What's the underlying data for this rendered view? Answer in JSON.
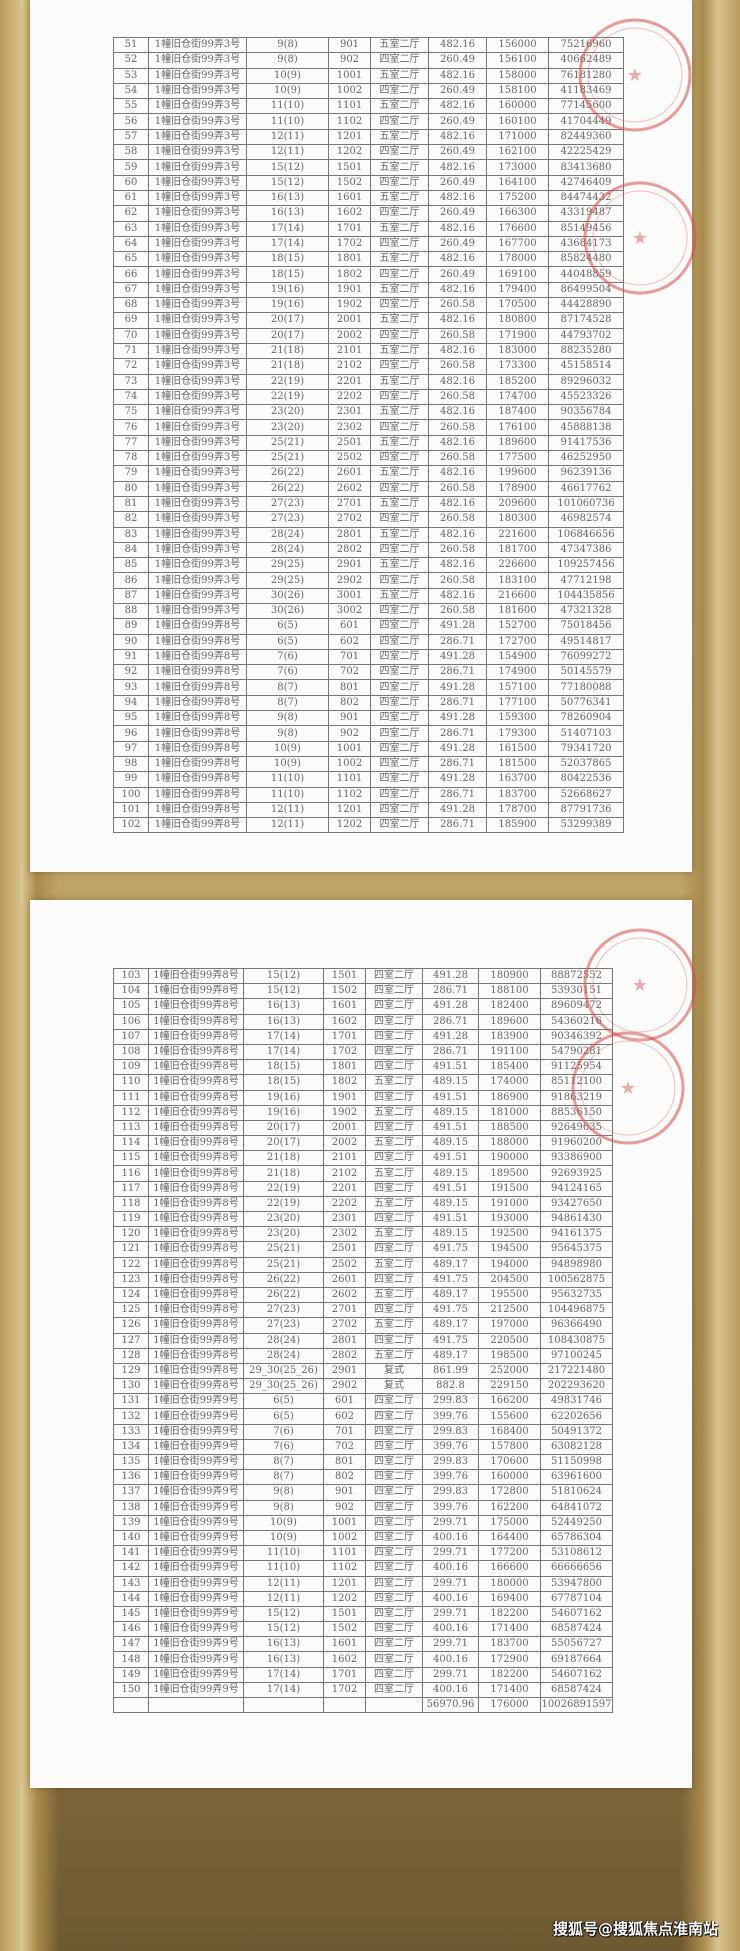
{
  "colors": {
    "stamp": "#d94a4a",
    "grid": "#777777",
    "text": "#666666"
  },
  "page1": {
    "rows": [
      [
        "51",
        "1幢旧仓街99弄3号",
        "9(8)",
        "901",
        "五室二厅",
        "482.16",
        "156000",
        "75216960"
      ],
      [
        "52",
        "1幢旧仓街99弄3号",
        "9(8)",
        "902",
        "四室二厅",
        "260.49",
        "156100",
        "40662489"
      ],
      [
        "53",
        "1幢旧仓街99弄3号",
        "10(9)",
        "1001",
        "五室二厅",
        "482.16",
        "158000",
        "76181280"
      ],
      [
        "54",
        "1幢旧仓街99弄3号",
        "10(9)",
        "1002",
        "四室二厅",
        "260.49",
        "158100",
        "41183469"
      ],
      [
        "55",
        "1幢旧仓街99弄3号",
        "11(10)",
        "1101",
        "五室二厅",
        "482.16",
        "160000",
        "77145600"
      ],
      [
        "56",
        "1幢旧仓街99弄3号",
        "11(10)",
        "1102",
        "四室二厅",
        "260.49",
        "160100",
        "41704449"
      ],
      [
        "57",
        "1幢旧仓街99弄3号",
        "12(11)",
        "1201",
        "五室二厅",
        "482.16",
        "171000",
        "82449360"
      ],
      [
        "58",
        "1幢旧仓街99弄3号",
        "12(11)",
        "1202",
        "四室二厅",
        "260.49",
        "162100",
        "42225429"
      ],
      [
        "59",
        "1幢旧仓街99弄3号",
        "15(12)",
        "1501",
        "五室二厅",
        "482.16",
        "173000",
        "83413680"
      ],
      [
        "60",
        "1幢旧仓街99弄3号",
        "15(12)",
        "1502",
        "四室二厅",
        "260.49",
        "164100",
        "42746409"
      ],
      [
        "61",
        "1幢旧仓街99弄3号",
        "16(13)",
        "1601",
        "五室二厅",
        "482.16",
        "175200",
        "84474432"
      ],
      [
        "62",
        "1幢旧仓街99弄3号",
        "16(13)",
        "1602",
        "四室二厅",
        "260.49",
        "166300",
        "43319487"
      ],
      [
        "63",
        "1幢旧仓街99弄3号",
        "17(14)",
        "1701",
        "五室二厅",
        "482.16",
        "176600",
        "85149456"
      ],
      [
        "64",
        "1幢旧仓街99弄3号",
        "17(14)",
        "1702",
        "四室二厅",
        "260.49",
        "167700",
        "43684173"
      ],
      [
        "65",
        "1幢旧仓街99弄3号",
        "18(15)",
        "1801",
        "五室二厅",
        "482.16",
        "178000",
        "85824480"
      ],
      [
        "66",
        "1幢旧仓街99弄3号",
        "18(15)",
        "1802",
        "四室二厅",
        "260.49",
        "169100",
        "44048859"
      ],
      [
        "67",
        "1幢旧仓街99弄3号",
        "19(16)",
        "1901",
        "五室二厅",
        "482.16",
        "179400",
        "86499504"
      ],
      [
        "68",
        "1幢旧仓街99弄3号",
        "19(16)",
        "1902",
        "四室二厅",
        "260.58",
        "170500",
        "44428890"
      ],
      [
        "69",
        "1幢旧仓街99弄3号",
        "20(17)",
        "2001",
        "五室二厅",
        "482.16",
        "180800",
        "87174528"
      ],
      [
        "70",
        "1幢旧仓街99弄3号",
        "20(17)",
        "2002",
        "四室二厅",
        "260.58",
        "171900",
        "44793702"
      ],
      [
        "71",
        "1幢旧仓街99弄3号",
        "21(18)",
        "2101",
        "五室二厅",
        "482.16",
        "183000",
        "88235280"
      ],
      [
        "72",
        "1幢旧仓街99弄3号",
        "21(18)",
        "2102",
        "四室二厅",
        "260.58",
        "173300",
        "45158514"
      ],
      [
        "73",
        "1幢旧仓街99弄3号",
        "22(19)",
        "2201",
        "五室二厅",
        "482.16",
        "185200",
        "89296032"
      ],
      [
        "74",
        "1幢旧仓街99弄3号",
        "22(19)",
        "2202",
        "四室二厅",
        "260.58",
        "174700",
        "45523326"
      ],
      [
        "75",
        "1幢旧仓街99弄3号",
        "23(20)",
        "2301",
        "五室二厅",
        "482.16",
        "187400",
        "90356784"
      ],
      [
        "76",
        "1幢旧仓街99弄3号",
        "23(20)",
        "2302",
        "四室二厅",
        "260.58",
        "176100",
        "45888138"
      ],
      [
        "77",
        "1幢旧仓街99弄3号",
        "25(21)",
        "2501",
        "五室二厅",
        "482.16",
        "189600",
        "91417536"
      ],
      [
        "78",
        "1幢旧仓街99弄3号",
        "25(21)",
        "2502",
        "四室二厅",
        "260.58",
        "177500",
        "46252950"
      ],
      [
        "79",
        "1幢旧仓街99弄3号",
        "26(22)",
        "2601",
        "五室二厅",
        "482.16",
        "199600",
        "96239136"
      ],
      [
        "80",
        "1幢旧仓街99弄3号",
        "26(22)",
        "2602",
        "四室二厅",
        "260.58",
        "178900",
        "46617762"
      ],
      [
        "81",
        "1幢旧仓街99弄3号",
        "27(23)",
        "2701",
        "五室二厅",
        "482.16",
        "209600",
        "101060736"
      ],
      [
        "82",
        "1幢旧仓街99弄3号",
        "27(23)",
        "2702",
        "四室二厅",
        "260.58",
        "180300",
        "46982574"
      ],
      [
        "83",
        "1幢旧仓街99弄3号",
        "28(24)",
        "2801",
        "五室二厅",
        "482.16",
        "221600",
        "106846656"
      ],
      [
        "84",
        "1幢旧仓街99弄3号",
        "28(24)",
        "2802",
        "四室二厅",
        "260.58",
        "181700",
        "47347386"
      ],
      [
        "85",
        "1幢旧仓街99弄3号",
        "29(25)",
        "2901",
        "五室二厅",
        "482.16",
        "226600",
        "109257456"
      ],
      [
        "86",
        "1幢旧仓街99弄3号",
        "29(25)",
        "2902",
        "四室二厅",
        "260.58",
        "183100",
        "47712198"
      ],
      [
        "87",
        "1幢旧仓街99弄3号",
        "30(26)",
        "3001",
        "五室二厅",
        "482.16",
        "216600",
        "104435856"
      ],
      [
        "88",
        "1幢旧仓街99弄3号",
        "30(26)",
        "3002",
        "四室二厅",
        "260.58",
        "181600",
        "47321328"
      ],
      [
        "89",
        "1幢旧仓街99弄8号",
        "6(5)",
        "601",
        "四室二厅",
        "491.28",
        "152700",
        "75018456"
      ],
      [
        "90",
        "1幢旧仓街99弄8号",
        "6(5)",
        "602",
        "四室二厅",
        "286.71",
        "172700",
        "49514817"
      ],
      [
        "91",
        "1幢旧仓街99弄8号",
        "7(6)",
        "701",
        "四室二厅",
        "491.28",
        "154900",
        "76099272"
      ],
      [
        "92",
        "1幢旧仓街99弄8号",
        "7(6)",
        "702",
        "四室二厅",
        "286.71",
        "174900",
        "50145579"
      ],
      [
        "93",
        "1幢旧仓街99弄8号",
        "8(7)",
        "801",
        "四室二厅",
        "491.28",
        "157100",
        "77180088"
      ],
      [
        "94",
        "1幢旧仓街99弄8号",
        "8(7)",
        "802",
        "四室二厅",
        "286.71",
        "177100",
        "50776341"
      ],
      [
        "95",
        "1幢旧仓街99弄8号",
        "9(8)",
        "901",
        "四室二厅",
        "491.28",
        "159300",
        "78260904"
      ],
      [
        "96",
        "1幢旧仓街99弄8号",
        "9(8)",
        "902",
        "四室二厅",
        "286.71",
        "179300",
        "51407103"
      ],
      [
        "97",
        "1幢旧仓街99弄8号",
        "10(9)",
        "1001",
        "四室二厅",
        "491.28",
        "161500",
        "79341720"
      ],
      [
        "98",
        "1幢旧仓街99弄8号",
        "10(9)",
        "1002",
        "四室二厅",
        "286.71",
        "181500",
        "52037865"
      ],
      [
        "99",
        "1幢旧仓街99弄8号",
        "11(10)",
        "1101",
        "四室二厅",
        "491.28",
        "163700",
        "80422536"
      ],
      [
        "100",
        "1幢旧仓街99弄8号",
        "11(10)",
        "1102",
        "四室二厅",
        "286.71",
        "183700",
        "52668627"
      ],
      [
        "101",
        "1幢旧仓街99弄8号",
        "12(11)",
        "1201",
        "四室二厅",
        "491.28",
        "178700",
        "87791736"
      ],
      [
        "102",
        "1幢旧仓街99弄8号",
        "12(11)",
        "1202",
        "四室二厅",
        "286.71",
        "185900",
        "53299389"
      ]
    ]
  },
  "page2": {
    "rows": [
      [
        "103",
        "1幢旧仓街99弄8号",
        "15(12)",
        "1501",
        "四室二厅",
        "491.28",
        "180900",
        "88872552"
      ],
      [
        "104",
        "1幢旧仓街99弄8号",
        "15(12)",
        "1502",
        "四室二厅",
        "286.71",
        "188100",
        "53930151"
      ],
      [
        "105",
        "1幢旧仓街99弄8号",
        "16(13)",
        "1601",
        "四室二厅",
        "491.28",
        "182400",
        "89609472"
      ],
      [
        "106",
        "1幢旧仓街99弄8号",
        "16(13)",
        "1602",
        "四室二厅",
        "286.71",
        "189600",
        "54360216"
      ],
      [
        "107",
        "1幢旧仓街99弄8号",
        "17(14)",
        "1701",
        "四室二厅",
        "491.28",
        "183900",
        "90346392"
      ],
      [
        "108",
        "1幢旧仓街99弄8号",
        "17(14)",
        "1702",
        "四室二厅",
        "286.71",
        "191100",
        "54790281"
      ],
      [
        "109",
        "1幢旧仓街99弄8号",
        "18(15)",
        "1801",
        "四室二厅",
        "491.51",
        "185400",
        "91125954"
      ],
      [
        "110",
        "1幢旧仓街99弄8号",
        "18(15)",
        "1802",
        "五室二厅",
        "489.15",
        "174000",
        "85112100"
      ],
      [
        "111",
        "1幢旧仓街99弄8号",
        "19(16)",
        "1901",
        "四室二厅",
        "491.51",
        "186900",
        "91863219"
      ],
      [
        "112",
        "1幢旧仓街99弄8号",
        "19(16)",
        "1902",
        "五室二厅",
        "489.15",
        "181000",
        "88536150"
      ],
      [
        "113",
        "1幢旧仓街99弄8号",
        "20(17)",
        "2001",
        "四室二厅",
        "491.51",
        "188500",
        "92649635"
      ],
      [
        "114",
        "1幢旧仓街99弄8号",
        "20(17)",
        "2002",
        "五室二厅",
        "489.15",
        "188000",
        "91960200"
      ],
      [
        "115",
        "1幢旧仓街99弄8号",
        "21(18)",
        "2101",
        "四室二厅",
        "491.51",
        "190000",
        "93386900"
      ],
      [
        "116",
        "1幢旧仓街99弄8号",
        "21(18)",
        "2102",
        "五室二厅",
        "489.15",
        "189500",
        "92693925"
      ],
      [
        "117",
        "1幢旧仓街99弄8号",
        "22(19)",
        "2201",
        "四室二厅",
        "491.51",
        "191500",
        "94124165"
      ],
      [
        "118",
        "1幢旧仓街99弄8号",
        "22(19)",
        "2202",
        "五室二厅",
        "489.15",
        "191000",
        "93427650"
      ],
      [
        "119",
        "1幢旧仓街99弄8号",
        "23(20)",
        "2301",
        "四室二厅",
        "491.51",
        "193000",
        "94861430"
      ],
      [
        "120",
        "1幢旧仓街99弄8号",
        "23(20)",
        "2302",
        "五室二厅",
        "489.15",
        "192500",
        "94161375"
      ],
      [
        "121",
        "1幢旧仓街99弄8号",
        "25(21)",
        "2501",
        "四室二厅",
        "491.75",
        "194500",
        "95645375"
      ],
      [
        "122",
        "1幢旧仓街99弄8号",
        "25(21)",
        "2502",
        "五室二厅",
        "489.17",
        "194000",
        "94898980"
      ],
      [
        "123",
        "1幢旧仓街99弄8号",
        "26(22)",
        "2601",
        "四室二厅",
        "491.75",
        "204500",
        "100562875"
      ],
      [
        "124",
        "1幢旧仓街99弄8号",
        "26(22)",
        "2602",
        "五室二厅",
        "489.17",
        "195500",
        "95632735"
      ],
      [
        "125",
        "1幢旧仓街99弄8号",
        "27(23)",
        "2701",
        "四室二厅",
        "491.75",
        "212500",
        "104496875"
      ],
      [
        "126",
        "1幢旧仓街99弄8号",
        "27(23)",
        "2702",
        "五室二厅",
        "489.17",
        "197000",
        "96366490"
      ],
      [
        "127",
        "1幢旧仓街99弄8号",
        "28(24)",
        "2801",
        "四室二厅",
        "491.75",
        "220500",
        "108430875"
      ],
      [
        "128",
        "1幢旧仓街99弄8号",
        "28(24)",
        "2802",
        "五室二厅",
        "489.17",
        "198500",
        "97100245"
      ],
      [
        "129",
        "1幢旧仓街99弄8号",
        "29_30(25_26)",
        "2901",
        "复式",
        "861.99",
        "252000",
        "217221480"
      ],
      [
        "130",
        "1幢旧仓街99弄8号",
        "29_30(25_26)",
        "2902",
        "复式",
        "882.8",
        "229150",
        "202293620"
      ],
      [
        "131",
        "1幢旧仓街99弄9号",
        "6(5)",
        "601",
        "四室二厅",
        "299.83",
        "166200",
        "49831746"
      ],
      [
        "132",
        "1幢旧仓街99弄9号",
        "6(5)",
        "602",
        "四室二厅",
        "399.76",
        "155600",
        "62202656"
      ],
      [
        "133",
        "1幢旧仓街99弄9号",
        "7(6)",
        "701",
        "四室二厅",
        "299.83",
        "168400",
        "50491372"
      ],
      [
        "134",
        "1幢旧仓街99弄9号",
        "7(6)",
        "702",
        "四室二厅",
        "399.76",
        "157800",
        "63082128"
      ],
      [
        "135",
        "1幢旧仓街99弄9号",
        "8(7)",
        "801",
        "四室二厅",
        "299.83",
        "170600",
        "51150998"
      ],
      [
        "136",
        "1幢旧仓街99弄9号",
        "8(7)",
        "802",
        "四室二厅",
        "399.76",
        "160000",
        "63961600"
      ],
      [
        "137",
        "1幢旧仓街99弄9号",
        "9(8)",
        "901",
        "四室二厅",
        "299.83",
        "172800",
        "51810624"
      ],
      [
        "138",
        "1幢旧仓街99弄9号",
        "9(8)",
        "902",
        "四室二厅",
        "399.76",
        "162200",
        "64841072"
      ],
      [
        "139",
        "1幢旧仓街99弄9号",
        "10(9)",
        "1001",
        "四室二厅",
        "299.71",
        "175000",
        "52449250"
      ],
      [
        "140",
        "1幢旧仓街99弄9号",
        "10(9)",
        "1002",
        "四室二厅",
        "400.16",
        "164400",
        "65786304"
      ],
      [
        "141",
        "1幢旧仓街99弄9号",
        "11(10)",
        "1101",
        "四室二厅",
        "299.71",
        "177200",
        "53108612"
      ],
      [
        "142",
        "1幢旧仓街99弄9号",
        "11(10)",
        "1102",
        "四室二厅",
        "400.16",
        "166600",
        "66666656"
      ],
      [
        "143",
        "1幢旧仓街99弄9号",
        "12(11)",
        "1201",
        "四室二厅",
        "299.71",
        "180000",
        "53947800"
      ],
      [
        "144",
        "1幢旧仓街99弄9号",
        "12(11)",
        "1202",
        "四室二厅",
        "400.16",
        "169400",
        "67787104"
      ],
      [
        "145",
        "1幢旧仓街99弄9号",
        "15(12)",
        "1501",
        "四室二厅",
        "299.71",
        "182200",
        "54607162"
      ],
      [
        "146",
        "1幢旧仓街99弄9号",
        "15(12)",
        "1502",
        "四室二厅",
        "400.16",
        "171400",
        "68587424"
      ],
      [
        "147",
        "1幢旧仓街99弄9号",
        "16(13)",
        "1601",
        "四室二厅",
        "299.71",
        "183700",
        "55056727"
      ],
      [
        "148",
        "1幢旧仓街99弄9号",
        "16(13)",
        "1602",
        "四室二厅",
        "400.16",
        "172900",
        "69187664"
      ],
      [
        "149",
        "1幢旧仓街99弄9号",
        "17(14)",
        "1701",
        "四室二厅",
        "299.71",
        "182200",
        "54607162"
      ],
      [
        "150",
        "1幢旧仓街99弄9号",
        "17(14)",
        "1702",
        "四室二厅",
        "400.16",
        "171400",
        "68587424"
      ]
    ],
    "total": {
      "area": "56970.96",
      "price": "176000",
      "amount": "10026891597"
    }
  },
  "stamps": [
    "red-company-seal",
    "red-company-seal",
    "red-company-seal",
    "red-company-seal"
  ],
  "watermark": "搜狐号@搜狐焦点淮南站"
}
